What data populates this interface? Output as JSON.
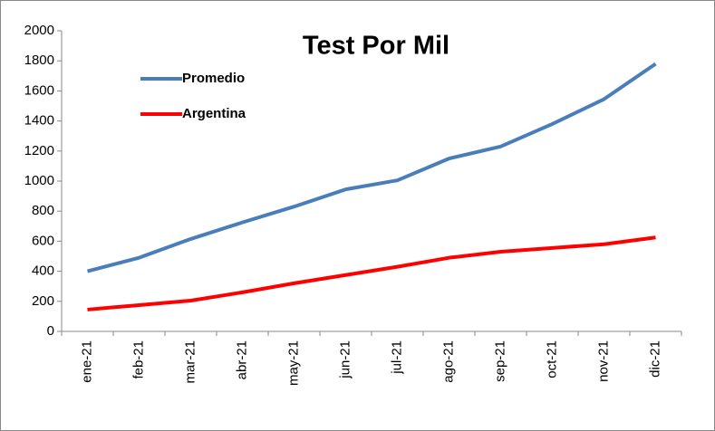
{
  "chart_data": {
    "type": "line",
    "title": "Test Por Mil",
    "categories": [
      "ene-21",
      "feb-21",
      "mar-21",
      "abr-21",
      "may-21",
      "jun-21",
      "jul-21",
      "ago-21",
      "sep-21",
      "oct-21",
      "nov-21",
      "dic-21"
    ],
    "series": [
      {
        "name": "Promedio",
        "color": "#4a7ebb",
        "values": [
          400,
          490,
          615,
          725,
          830,
          945,
          1005,
          1150,
          1230,
          1380,
          1545,
          1780
        ]
      },
      {
        "name": "Argentina",
        "color": "#ff0000",
        "values": [
          145,
          175,
          205,
          260,
          320,
          375,
          430,
          490,
          530,
          555,
          580,
          625
        ]
      }
    ],
    "ylim": [
      0,
      2000
    ],
    "yticks": [
      0,
      200,
      400,
      600,
      800,
      1000,
      1200,
      1400,
      1600,
      1800,
      2000
    ],
    "grid": false,
    "legend": "top-left"
  }
}
